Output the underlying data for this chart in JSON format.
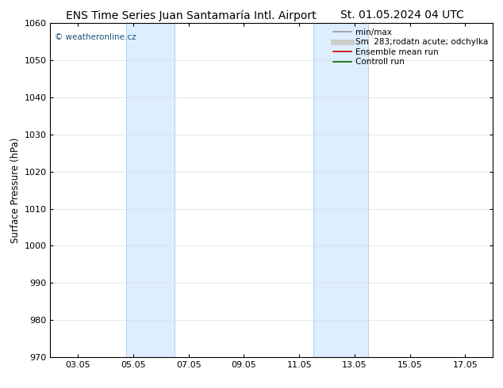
{
  "title_left": "ENS Time Series Juan Santamaría Intl. Airport",
  "title_right": "St. 01.05.2024 04 UTC",
  "ylabel": "Surface Pressure (hPa)",
  "ylim": [
    970,
    1060
  ],
  "yticks": [
    970,
    980,
    990,
    1000,
    1010,
    1020,
    1030,
    1040,
    1050,
    1060
  ],
  "xlim": [
    1,
    17
  ],
  "xtick_labels": [
    "03.05",
    "05.05",
    "07.05",
    "09.05",
    "11.05",
    "13.05",
    "15.05",
    "17.05"
  ],
  "xtick_positions": [
    2,
    4,
    6,
    8,
    10,
    12,
    14,
    16
  ],
  "shade_bands": [
    {
      "x_start": 3.75,
      "x_end": 5.5
    },
    {
      "x_start": 10.5,
      "x_end": 12.5
    }
  ],
  "shade_color": "#ddeeff",
  "shade_edge_color": "#aaccee",
  "watermark_text": "© weatheronline.cz",
  "watermark_color": "#1a5276",
  "background_color": "#ffffff",
  "legend_entries": [
    {
      "label": "min/max",
      "color": "#999999",
      "lw": 1.2
    },
    {
      "label": "Sm  283;rodatn acute; odchylka",
      "color": "#cccccc",
      "lw": 5
    },
    {
      "label": "Ensemble mean run",
      "color": "#cc0000",
      "lw": 1.2
    },
    {
      "label": "Controll run",
      "color": "#006600",
      "lw": 1.2
    }
  ],
  "title_fontsize": 10,
  "axis_fontsize": 8.5,
  "tick_fontsize": 8,
  "legend_fontsize": 7.5
}
